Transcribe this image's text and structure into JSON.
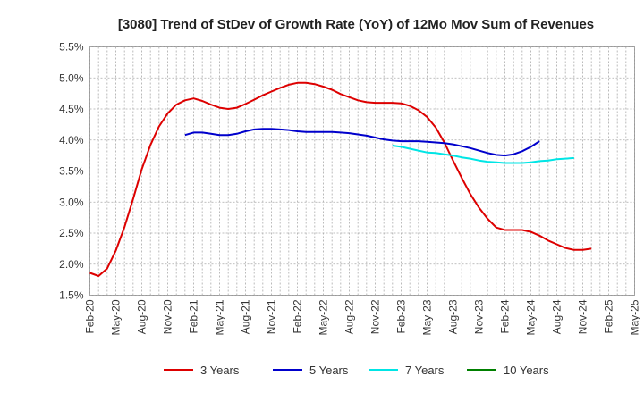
{
  "chart_data": {
    "type": "line",
    "title": "[3080]  Trend of StDev of Growth Rate (YoY) of 12Mo Mov Sum of Revenues",
    "xlabel": "",
    "ylabel": "",
    "ylim": [
      1.5,
      5.5
    ],
    "y_ticks": [
      1.5,
      2.0,
      2.5,
      3.0,
      3.5,
      4.0,
      4.5,
      5.0,
      5.5
    ],
    "y_tick_labels": [
      "1.5%",
      "2.0%",
      "2.5%",
      "3.0%",
      "3.5%",
      "4.0%",
      "4.5%",
      "5.0%",
      "5.5%"
    ],
    "x_tick_labels": [
      "Feb-20",
      "May-20",
      "Aug-20",
      "Nov-20",
      "Feb-21",
      "May-21",
      "Aug-21",
      "Nov-21",
      "Feb-22",
      "May-22",
      "Aug-22",
      "Nov-22",
      "Feb-23",
      "May-23",
      "Aug-23",
      "Nov-23",
      "Feb-24",
      "May-24",
      "Aug-24",
      "Nov-24",
      "Feb-25",
      "May-25"
    ],
    "x_start": "Feb-20",
    "x_months_total": 63,
    "grid": true,
    "legend_position": "bottom",
    "series": [
      {
        "name": "3 Years",
        "color": "#dd0000",
        "start_month_index": 0,
        "values": [
          1.86,
          1.81,
          1.93,
          2.22,
          2.6,
          3.05,
          3.53,
          3.92,
          4.22,
          4.43,
          4.57,
          4.64,
          4.67,
          4.63,
          4.57,
          4.52,
          4.5,
          4.52,
          4.58,
          4.65,
          4.72,
          4.78,
          4.84,
          4.89,
          4.92,
          4.92,
          4.9,
          4.86,
          4.81,
          4.74,
          4.69,
          4.64,
          4.61,
          4.6,
          4.6,
          4.6,
          4.59,
          4.55,
          4.48,
          4.37,
          4.2,
          3.96,
          3.67,
          3.39,
          3.13,
          2.91,
          2.73,
          2.59,
          2.55,
          2.55,
          2.55,
          2.52,
          2.46,
          2.38,
          2.32,
          2.26,
          2.23,
          2.23,
          2.25
        ]
      },
      {
        "name": "5 Years",
        "color": "#0000cc",
        "start_month_index": 11,
        "values": [
          4.08,
          4.12,
          4.12,
          4.1,
          4.08,
          4.08,
          4.1,
          4.14,
          4.17,
          4.18,
          4.18,
          4.17,
          4.16,
          4.14,
          4.13,
          4.13,
          4.13,
          4.13,
          4.12,
          4.11,
          4.09,
          4.07,
          4.04,
          4.01,
          3.99,
          3.98,
          3.98,
          3.98,
          3.97,
          3.96,
          3.95,
          3.93,
          3.9,
          3.87,
          3.83,
          3.79,
          3.76,
          3.75,
          3.77,
          3.82,
          3.89,
          3.98
        ]
      },
      {
        "name": "7 Years",
        "color": "#00e5e5",
        "start_month_index": 35,
        "values": [
          3.91,
          3.89,
          3.86,
          3.83,
          3.8,
          3.79,
          3.77,
          3.75,
          3.72,
          3.7,
          3.67,
          3.65,
          3.64,
          3.63,
          3.63,
          3.63,
          3.64,
          3.66,
          3.67,
          3.69,
          3.7,
          3.71
        ]
      },
      {
        "name": "10 Years",
        "color": "#008000",
        "start_month_index": 0,
        "values": []
      }
    ]
  }
}
